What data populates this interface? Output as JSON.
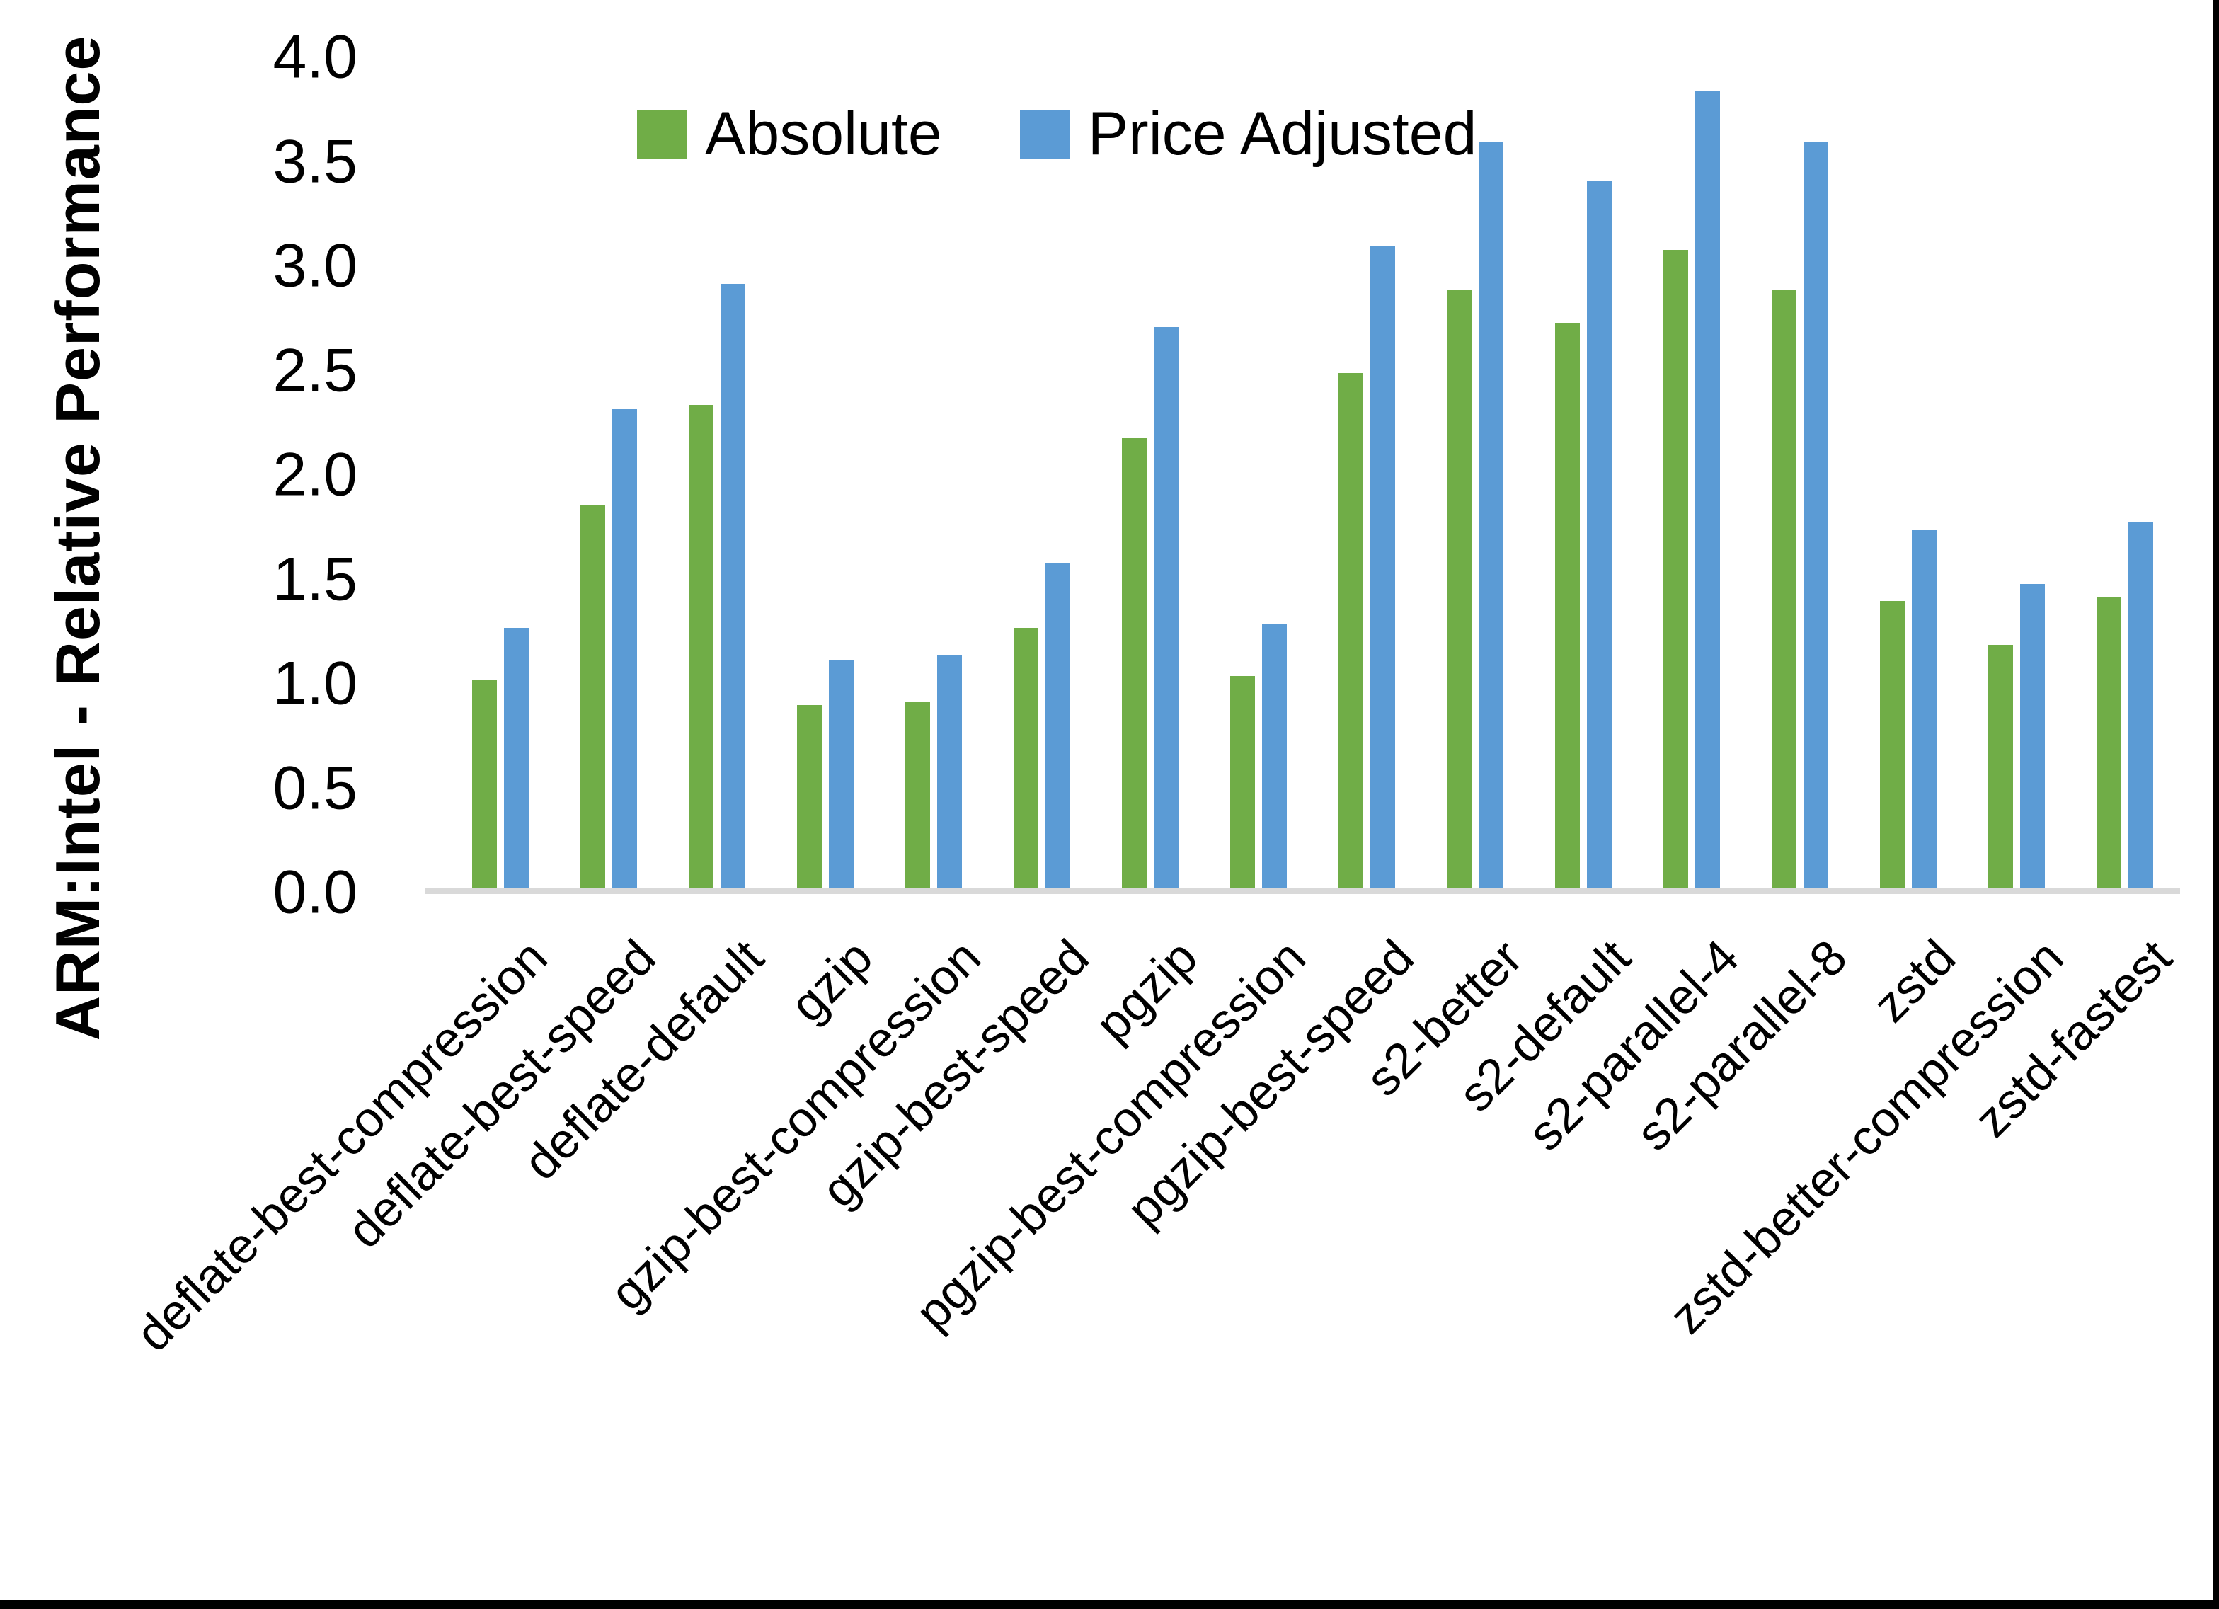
{
  "page": {
    "background": "#ffffff",
    "window_edge_color": "#000000"
  },
  "chart_data": {
    "type": "bar",
    "title": "",
    "xlabel": "",
    "ylabel": "ARM:Intel - Relative Performance",
    "ylim": [
      0.0,
      4.0
    ],
    "ytick_step": 0.5,
    "ytick_labels": [
      "0.0",
      "0.5",
      "1.0",
      "1.5",
      "2.0",
      "2.5",
      "3.0",
      "3.5",
      "4.0"
    ],
    "grid": false,
    "legend_position": "top-center",
    "axis_line_color": "#d9d9d9",
    "categories": [
      "deflate-best-compression",
      "deflate-best-speed",
      "deflate-default",
      "gzip",
      "gzip-best-compression",
      "gzip-best-speed",
      "pgzip",
      "pgzip-best-compression",
      "pgzip-best-speed",
      "s2-better",
      "s2-default",
      "s2-parallel-4",
      "s2-parallel-8",
      "zstd",
      "zstd-better-compression",
      "zstd-fastest"
    ],
    "series": [
      {
        "name": "Absolute",
        "color": "#70AD47",
        "values": [
          1.01,
          1.85,
          2.33,
          0.89,
          0.91,
          1.26,
          2.17,
          1.03,
          2.48,
          2.88,
          2.72,
          3.07,
          2.88,
          1.39,
          1.18,
          1.41
        ]
      },
      {
        "name": "Price Adjusted",
        "color": "#5B9BD5",
        "values": [
          1.26,
          2.31,
          2.91,
          1.11,
          1.13,
          1.57,
          2.7,
          1.28,
          3.09,
          3.59,
          3.4,
          3.83,
          3.59,
          1.73,
          1.47,
          1.77
        ]
      }
    ]
  }
}
